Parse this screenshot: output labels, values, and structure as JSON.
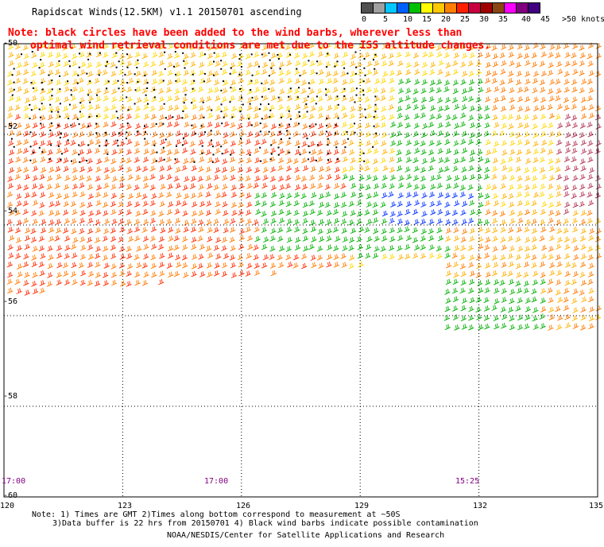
{
  "title": "Rapidscat Winds(12.5KM) v1.1 20150701 ascending",
  "legend": {
    "labels": [
      "0",
      "5",
      "10",
      "15",
      "20",
      "25",
      "30",
      "35",
      "40",
      "45",
      ">50 knots"
    ],
    "colors": [
      "#505050",
      "#a0a0a0",
      "#00c8ff",
      "#0060ff",
      "#00c000",
      "#ffff00",
      "#ffc800",
      "#ff8000",
      "#ff2000",
      "#c80040",
      "#a00000",
      "#8b4513",
      "#ff00ff",
      "#800080",
      "#400080"
    ]
  },
  "notes_red": [
    "Note: black circles have been added to the wind barbs, wherever less than",
    "optimal wind retrieval conditions are met due to the ISS altitude changes."
  ],
  "map": {
    "x_ticks": [
      "120",
      "123",
      "126",
      "129",
      "132",
      "135"
    ],
    "y_ticks": [
      "-50",
      "-52",
      "-54",
      "-56",
      "-58",
      "-60"
    ],
    "x_range": [
      120,
      135
    ],
    "y_range": [
      -60,
      -50
    ],
    "time_labels": [
      "17:00",
      "17:00",
      "15:25"
    ]
  },
  "footnotes": [
    "Note: 1) Times are GMT 2)Times along bottom correspond to measurement at ~50S",
    "3)Data buffer is 22 hrs from 20150701 4) Black wind barbs indicate possible contamination",
    "NOAA/NESDIS/Center for Satellite Applications and Research"
  ]
}
